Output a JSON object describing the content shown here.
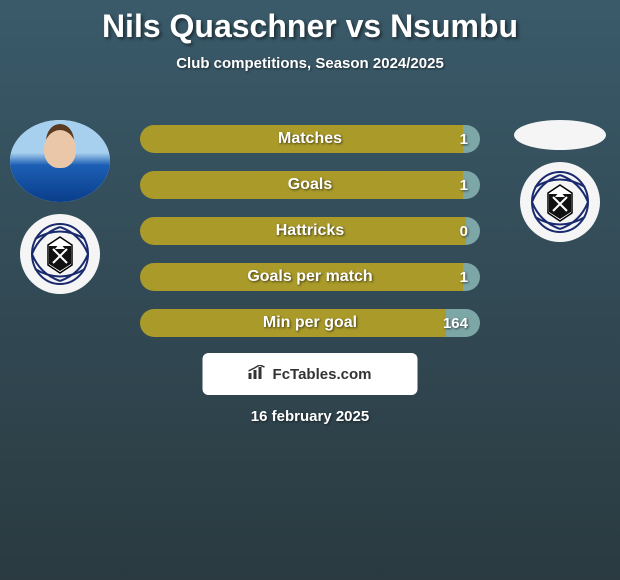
{
  "title": "Nils Quaschner vs Nsumbu",
  "subtitle": "Club competitions, Season 2024/2025",
  "colors": {
    "bar_left": "#a99a2a",
    "bar_right": "#7da6a6",
    "bar_right_zero": "#7da6a6",
    "bar_border": "#5e5e5e"
  },
  "bar_style": {
    "height": 28,
    "gap": 18,
    "radius": 14,
    "label_fontsize": 16,
    "value_fontsize": 15,
    "font_weight": 900,
    "text_color": "#ffffff"
  },
  "stats": [
    {
      "label": "Matches",
      "left_val": null,
      "right_val": "1",
      "left_pct": 95,
      "right_pct": 5
    },
    {
      "label": "Goals",
      "left_val": null,
      "right_val": "1",
      "left_pct": 95,
      "right_pct": 5
    },
    {
      "label": "Hattricks",
      "left_val": null,
      "right_val": "0",
      "left_pct": 96,
      "right_pct": 4
    },
    {
      "label": "Goals per match",
      "left_val": null,
      "right_val": "1",
      "left_pct": 95,
      "right_pct": 5
    },
    {
      "label": "Min per goal",
      "left_val": null,
      "right_val": "164",
      "left_pct": 90,
      "right_pct": 10
    }
  ],
  "left_player": {
    "has_photo": true,
    "club_name": "Arminia"
  },
  "right_player": {
    "has_photo": false,
    "club_name": "Arminia"
  },
  "footer_brand": "FcTables.com",
  "date": "16 february 2025"
}
